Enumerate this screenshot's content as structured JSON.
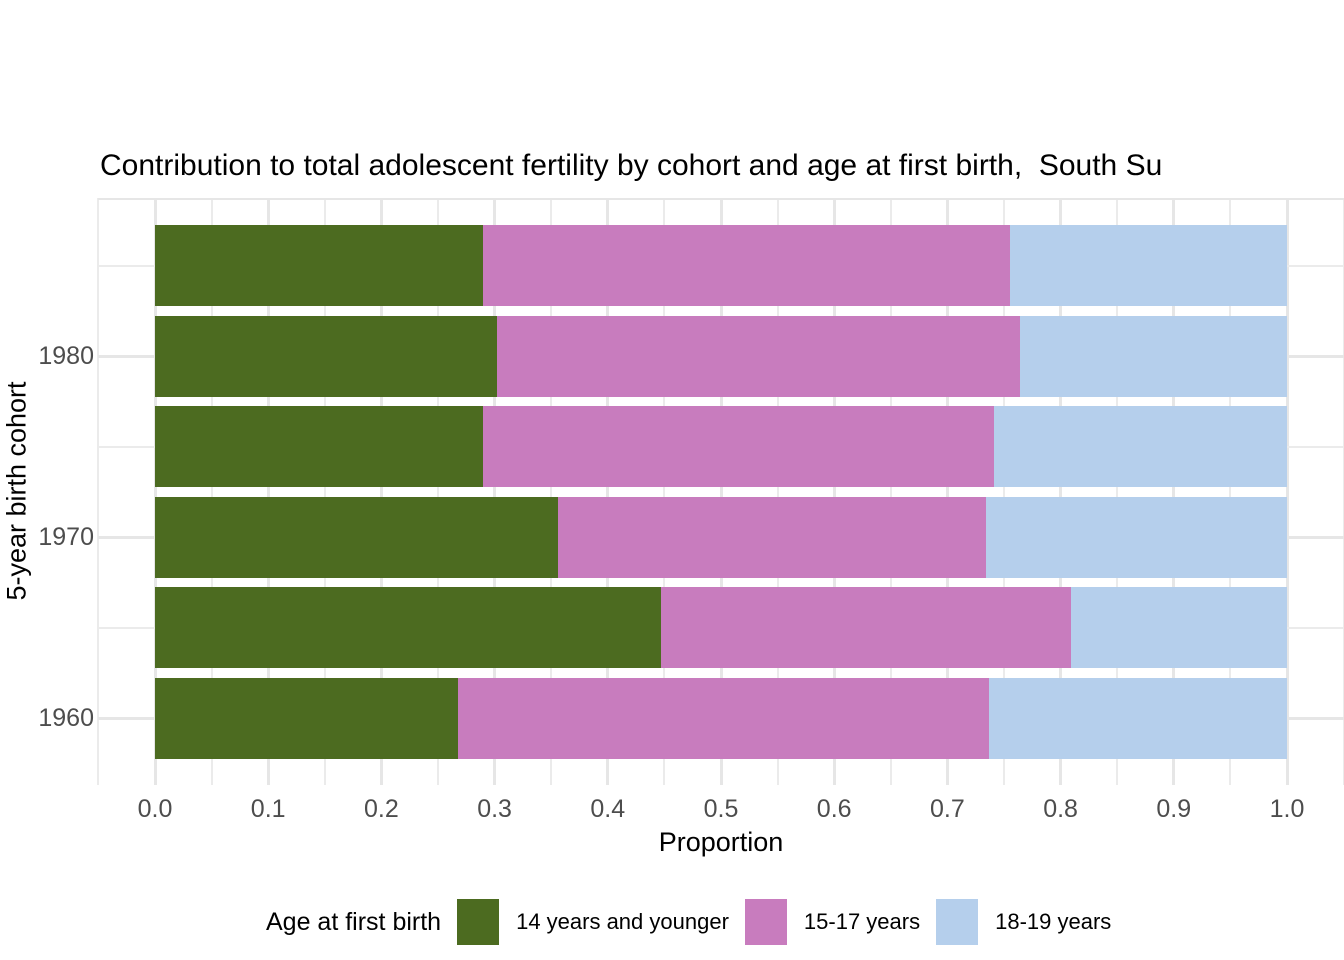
{
  "chart_data": {
    "type": "bar",
    "orientation": "horizontal",
    "stacked": true,
    "normalized": true,
    "title": "Contribution to total adolescent fertility by cohort and age at first birth,  South Su",
    "xlabel": "Proportion",
    "ylabel": "5-year birth cohort",
    "xlim": [
      0.0,
      1.0
    ],
    "x_tick_labels": [
      "0.0",
      "0.1",
      "0.2",
      "0.3",
      "0.4",
      "0.5",
      "0.6",
      "0.7",
      "0.8",
      "0.9",
      "1.0"
    ],
    "grid": {
      "on": true,
      "minor_interval": 0.05,
      "major_interval": 0.1
    },
    "rows_top_to_bottom": [
      {
        "cohort_label": "",
        "values": [
          0.29,
          0.465,
          0.245
        ]
      },
      {
        "cohort_label": "1980",
        "values": [
          0.302,
          0.462,
          0.236
        ]
      },
      {
        "cohort_label": "",
        "values": [
          0.29,
          0.451,
          0.259
        ]
      },
      {
        "cohort_label": "1970",
        "values": [
          0.356,
          0.378,
          0.266
        ]
      },
      {
        "cohort_label": "",
        "values": [
          0.447,
          0.362,
          0.191
        ]
      },
      {
        "cohort_label": "1960",
        "values": [
          0.268,
          0.469,
          0.263
        ]
      }
    ],
    "series": [
      {
        "name": "14 years and younger",
        "color": "#4C6B20",
        "values": [
          0.29,
          0.302,
          0.29,
          0.356,
          0.447,
          0.268
        ]
      },
      {
        "name": "15-17 years",
        "color": "#C87CBE",
        "values": [
          0.465,
          0.462,
          0.451,
          0.378,
          0.362,
          0.469
        ]
      },
      {
        "name": "18-19 years",
        "color": "#B5CFEC",
        "values": [
          0.245,
          0.236,
          0.259,
          0.266,
          0.191,
          0.263
        ]
      }
    ],
    "legend": {
      "title": "Age at first birth",
      "position": "bottom"
    },
    "colors": {
      "background": "#FFFFFF",
      "grid_major": "#E6E6E6",
      "grid_minor": "#EBEBEB",
      "tick_text": "#4D4D4D",
      "title_text": "#000000"
    }
  }
}
